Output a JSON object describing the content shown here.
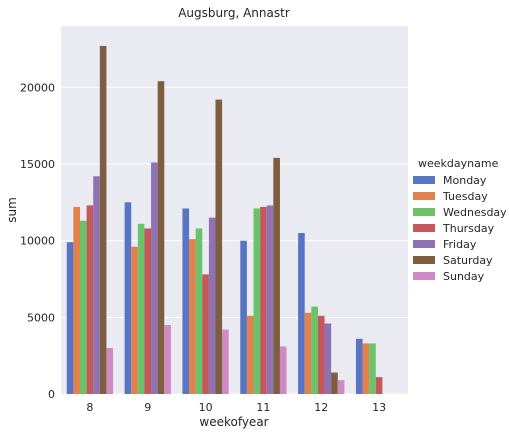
{
  "chart_data": {
    "type": "bar",
    "title": "Augsburg, Annastr",
    "xlabel": "weekofyear",
    "ylabel": "sum",
    "categories": [
      "8",
      "9",
      "10",
      "11",
      "12",
      "13"
    ],
    "ylim": [
      0,
      24000
    ],
    "yticks": [
      0,
      5000,
      10000,
      15000,
      20000
    ],
    "ytick_labels": [
      "0",
      "5000",
      "10000",
      "15000",
      "20000"
    ],
    "grid": true,
    "legend": {
      "title": "weekdayname",
      "placement": "right"
    },
    "series": [
      {
        "name": "Monday",
        "color": "#5875c3",
        "values": [
          9900,
          12500,
          12100,
          10000,
          10500,
          3600
        ]
      },
      {
        "name": "Tuesday",
        "color": "#e1814e",
        "values": [
          12200,
          9600,
          10100,
          5100,
          5300,
          3300
        ]
      },
      {
        "name": "Wednesday",
        "color": "#6cc26a",
        "values": [
          11300,
          11100,
          10800,
          12100,
          5700,
          3300
        ]
      },
      {
        "name": "Thursday",
        "color": "#c4595a",
        "values": [
          12300,
          10800,
          7800,
          12200,
          5100,
          1100
        ]
      },
      {
        "name": "Friday",
        "color": "#8e72b3",
        "values": [
          14200,
          15100,
          11500,
          12300,
          4600,
          null
        ]
      },
      {
        "name": "Saturday",
        "color": "#7f5e40",
        "values": [
          22700,
          20400,
          19200,
          15400,
          1400,
          null
        ]
      },
      {
        "name": "Sunday",
        "color": "#d08ac3",
        "values": [
          3000,
          4500,
          4200,
          3100,
          900,
          null
        ]
      }
    ]
  }
}
